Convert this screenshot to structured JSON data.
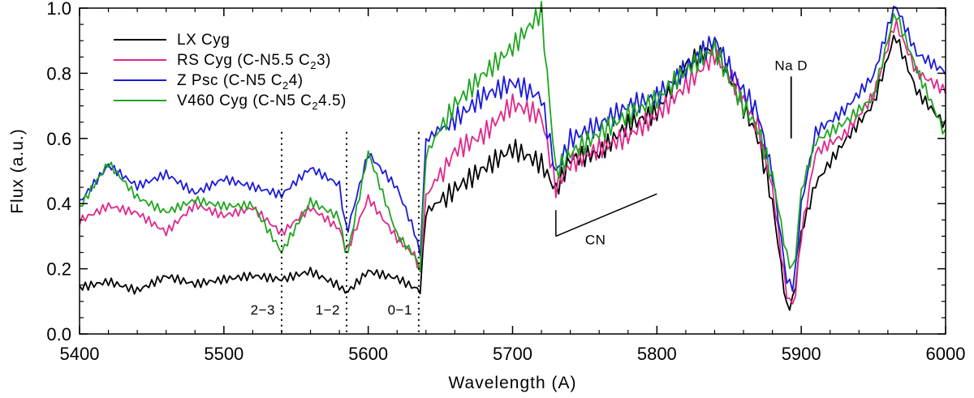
{
  "chart_data": {
    "type": "line",
    "title": "",
    "xlabel": "Wavelength (A)",
    "ylabel": "Flux (a.u.)",
    "xlim": [
      5400,
      6000
    ],
    "ylim": [
      0.0,
      1.0
    ],
    "xticks": [
      5400,
      5500,
      5600,
      5700,
      5800,
      5900,
      6000
    ],
    "xtick_labels": [
      "5400",
      "5500",
      "5600",
      "5700",
      "5800",
      "5900",
      "6000"
    ],
    "yticks": [
      0.0,
      0.2,
      0.4,
      0.6,
      0.8,
      1.0
    ],
    "ytick_labels": [
      "0.0",
      "0.2",
      "0.4",
      "0.6",
      "0.8",
      "1.0"
    ],
    "legend_position": "top-left",
    "series": [
      {
        "name": "LX Cyg",
        "label_main": "LX Cyg",
        "label_sub": "",
        "label_tail": "",
        "color": "#000000",
        "points": [
          [
            5400,
            0.15
          ],
          [
            5420,
            0.17
          ],
          [
            5440,
            0.14
          ],
          [
            5460,
            0.18
          ],
          [
            5480,
            0.15
          ],
          [
            5500,
            0.16
          ],
          [
            5520,
            0.17
          ],
          [
            5540,
            0.16
          ],
          [
            5560,
            0.19
          ],
          [
            5580,
            0.15
          ],
          [
            5585,
            0.13
          ],
          [
            5600,
            0.2
          ],
          [
            5620,
            0.18
          ],
          [
            5632,
            0.15
          ],
          [
            5636,
            0.14
          ],
          [
            5640,
            0.38
          ],
          [
            5660,
            0.45
          ],
          [
            5680,
            0.5
          ],
          [
            5700,
            0.55
          ],
          [
            5720,
            0.5
          ],
          [
            5730,
            0.42
          ],
          [
            5740,
            0.52
          ],
          [
            5760,
            0.55
          ],
          [
            5780,
            0.65
          ],
          [
            5800,
            0.7
          ],
          [
            5820,
            0.85
          ],
          [
            5840,
            0.9
          ],
          [
            5855,
            0.75
          ],
          [
            5870,
            0.6
          ],
          [
            5880,
            0.4
          ],
          [
            5890,
            0.07
          ],
          [
            5895,
            0.1
          ],
          [
            5900,
            0.3
          ],
          [
            5910,
            0.45
          ],
          [
            5930,
            0.58
          ],
          [
            5950,
            0.7
          ],
          [
            5965,
            0.92
          ],
          [
            5980,
            0.75
          ],
          [
            6000,
            0.65
          ]
        ]
      },
      {
        "name": "RS Cyg (C-N5.5 C23)",
        "label_main": "RS Cyg (C-N5.5 C",
        "label_sub": "2",
        "label_tail": "3)",
        "color": "#e0288a",
        "points": [
          [
            5400,
            0.35
          ],
          [
            5420,
            0.4
          ],
          [
            5440,
            0.38
          ],
          [
            5460,
            0.32
          ],
          [
            5480,
            0.4
          ],
          [
            5500,
            0.36
          ],
          [
            5520,
            0.38
          ],
          [
            5540,
            0.3
          ],
          [
            5560,
            0.38
          ],
          [
            5580,
            0.32
          ],
          [
            5585,
            0.25
          ],
          [
            5600,
            0.42
          ],
          [
            5620,
            0.3
          ],
          [
            5632,
            0.25
          ],
          [
            5636,
            0.2
          ],
          [
            5640,
            0.43
          ],
          [
            5660,
            0.58
          ],
          [
            5680,
            0.62
          ],
          [
            5700,
            0.7
          ],
          [
            5720,
            0.65
          ],
          [
            5730,
            0.43
          ],
          [
            5740,
            0.5
          ],
          [
            5760,
            0.55
          ],
          [
            5780,
            0.6
          ],
          [
            5800,
            0.68
          ],
          [
            5820,
            0.78
          ],
          [
            5840,
            0.88
          ],
          [
            5855,
            0.78
          ],
          [
            5870,
            0.65
          ],
          [
            5880,
            0.45
          ],
          [
            5890,
            0.12
          ],
          [
            5895,
            0.08
          ],
          [
            5900,
            0.3
          ],
          [
            5910,
            0.55
          ],
          [
            5930,
            0.6
          ],
          [
            5950,
            0.72
          ],
          [
            5965,
            0.95
          ],
          [
            5980,
            0.8
          ],
          [
            6000,
            0.75
          ]
        ]
      },
      {
        "name": "Z Psc (C-N5 C24)",
        "label_main": "Z Psc (C-N5 C",
        "label_sub": "2",
        "label_tail": "4)",
        "color": "#1a1adc",
        "points": [
          [
            5400,
            0.4
          ],
          [
            5420,
            0.52
          ],
          [
            5440,
            0.46
          ],
          [
            5460,
            0.5
          ],
          [
            5480,
            0.44
          ],
          [
            5500,
            0.48
          ],
          [
            5520,
            0.45
          ],
          [
            5540,
            0.42
          ],
          [
            5560,
            0.5
          ],
          [
            5580,
            0.45
          ],
          [
            5585,
            0.3
          ],
          [
            5600,
            0.55
          ],
          [
            5620,
            0.45
          ],
          [
            5632,
            0.32
          ],
          [
            5636,
            0.25
          ],
          [
            5640,
            0.6
          ],
          [
            5660,
            0.68
          ],
          [
            5680,
            0.75
          ],
          [
            5700,
            0.78
          ],
          [
            5720,
            0.72
          ],
          [
            5730,
            0.48
          ],
          [
            5740,
            0.58
          ],
          [
            5760,
            0.62
          ],
          [
            5780,
            0.68
          ],
          [
            5800,
            0.72
          ],
          [
            5820,
            0.82
          ],
          [
            5840,
            0.92
          ],
          [
            5855,
            0.8
          ],
          [
            5870,
            0.7
          ],
          [
            5880,
            0.5
          ],
          [
            5890,
            0.17
          ],
          [
            5895,
            0.15
          ],
          [
            5900,
            0.4
          ],
          [
            5910,
            0.62
          ],
          [
            5930,
            0.68
          ],
          [
            5950,
            0.78
          ],
          [
            5965,
            1.0
          ],
          [
            5980,
            0.85
          ],
          [
            6000,
            0.8
          ]
        ]
      },
      {
        "name": "V460 Cyg (C-N5 C24.5)",
        "label_main": "V460 Cyg (C-N5 C",
        "label_sub": "2",
        "label_tail": "4.5)",
        "color": "#1fa51f",
        "points": [
          [
            5400,
            0.38
          ],
          [
            5420,
            0.52
          ],
          [
            5440,
            0.42
          ],
          [
            5460,
            0.38
          ],
          [
            5480,
            0.42
          ],
          [
            5500,
            0.4
          ],
          [
            5520,
            0.4
          ],
          [
            5540,
            0.25
          ],
          [
            5560,
            0.4
          ],
          [
            5580,
            0.35
          ],
          [
            5585,
            0.22
          ],
          [
            5600,
            0.55
          ],
          [
            5620,
            0.3
          ],
          [
            5632,
            0.24
          ],
          [
            5636,
            0.2
          ],
          [
            5640,
            0.55
          ],
          [
            5660,
            0.72
          ],
          [
            5680,
            0.82
          ],
          [
            5700,
            0.9
          ],
          [
            5720,
            1.0
          ],
          [
            5730,
            0.5
          ],
          [
            5740,
            0.55
          ],
          [
            5760,
            0.6
          ],
          [
            5780,
            0.65
          ],
          [
            5800,
            0.7
          ],
          [
            5820,
            0.8
          ],
          [
            5840,
            0.88
          ],
          [
            5855,
            0.75
          ],
          [
            5870,
            0.65
          ],
          [
            5880,
            0.5
          ],
          [
            5890,
            0.25
          ],
          [
            5895,
            0.2
          ],
          [
            5900,
            0.45
          ],
          [
            5910,
            0.6
          ],
          [
            5930,
            0.65
          ],
          [
            5950,
            0.72
          ],
          [
            5965,
            0.98
          ],
          [
            5980,
            0.8
          ],
          [
            6000,
            0.6
          ]
        ]
      }
    ],
    "band_markers": [
      {
        "x": 5540,
        "label": "2−3"
      },
      {
        "x": 5585,
        "label": "1−2"
      },
      {
        "x": 5635,
        "label": "0−1"
      }
    ],
    "annotations": {
      "cn": {
        "label": "CN",
        "x_start": 5730,
        "x_end": 5800,
        "y_start": 0.3,
        "y_end": 0.43,
        "tick_top": 0.38
      },
      "nad": {
        "label": "Na D",
        "x": 5893,
        "y_low": 0.6,
        "y_high": 0.79
      }
    }
  }
}
